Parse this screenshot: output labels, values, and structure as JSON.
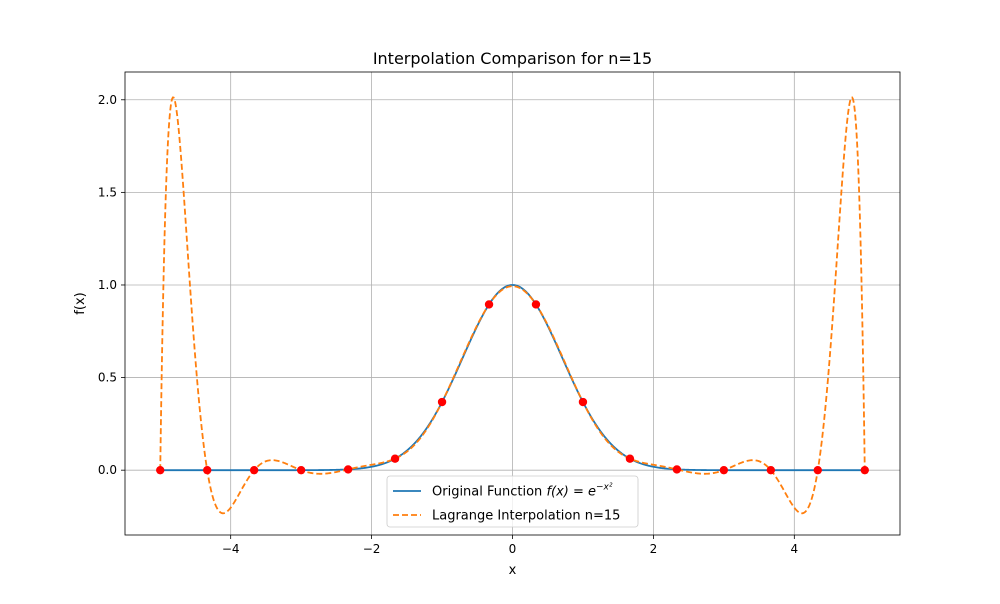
{
  "chart_data": {
    "type": "line",
    "title": "Interpolation Comparison for n=15",
    "xlabel": "x",
    "ylabel": "f(x)",
    "xlim": [
      -5.5,
      5.5
    ],
    "ylim": [
      -0.35,
      2.15
    ],
    "xticks": [
      -4,
      -2,
      0,
      2,
      4
    ],
    "xtick_labels": [
      "−4",
      "−2",
      "0",
      "2",
      "4"
    ],
    "yticks": [
      0.0,
      0.5,
      1.0,
      1.5,
      2.0
    ],
    "ytick_labels": [
      "0.0",
      "0.5",
      "1.0",
      "1.5",
      "2.0"
    ],
    "grid": true,
    "legend_position": "bottom-center",
    "series": [
      {
        "name": "Original Function f(x) = e⁻ˣ²",
        "legend_label": {
          "prefix": "Original Function ",
          "math": "f(x) = e",
          "exponent": "−x²"
        },
        "style": "solid",
        "color": "#1f77b4",
        "function": "exp(-x^2)",
        "x_range": [
          -5,
          5
        ]
      },
      {
        "name": "Lagrange Interpolation n=15",
        "style": "dashed",
        "color": "#ff7f0e",
        "function": "Lagrange interpolating polynomial of exp(-x^2) through the 16 equally spaced nodes",
        "x_range": [
          -5,
          5
        ],
        "approx_extrema": [
          {
            "x": -4.85,
            "y": 2.01
          },
          {
            "x": -4.1,
            "y": -0.23
          },
          {
            "x": -3.45,
            "y": 0.06
          },
          {
            "x": 3.45,
            "y": 0.06
          },
          {
            "x": 4.1,
            "y": -0.23
          },
          {
            "x": 4.85,
            "y": 2.01
          }
        ]
      }
    ],
    "nodes": {
      "color": "#ff0000",
      "x": [
        -5.0,
        -4.333,
        -3.667,
        -3.0,
        -2.333,
        -1.667,
        -1.0,
        -0.333,
        0.333,
        1.0,
        1.667,
        2.333,
        3.0,
        3.667,
        4.333,
        5.0
      ],
      "y": [
        0.0,
        0.0,
        0.0,
        0.0,
        0.004,
        0.062,
        0.368,
        0.895,
        0.895,
        0.368,
        0.062,
        0.004,
        0.0,
        0.0,
        0.0,
        0.0
      ]
    }
  }
}
